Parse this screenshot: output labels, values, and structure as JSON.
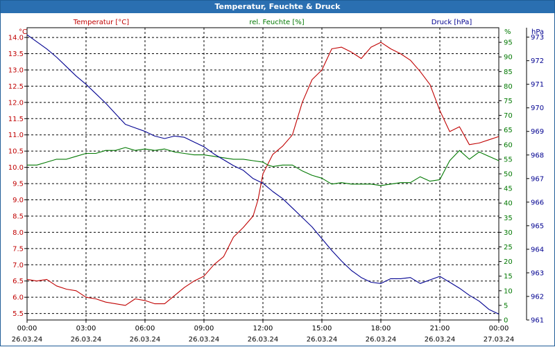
{
  "window": {
    "title": "Temperatur, Feuchte & Druck"
  },
  "chart_data": {
    "type": "line",
    "x_ticks": [
      {
        "time": "00:00",
        "date": "26.03.24"
      },
      {
        "time": "03:00",
        "date": "26.03.24"
      },
      {
        "time": "06:00",
        "date": "26.03.24"
      },
      {
        "time": "09:00",
        "date": "26.03.24"
      },
      {
        "time": "12:00",
        "date": "26.03.24"
      },
      {
        "time": "15:00",
        "date": "26.03.24"
      },
      {
        "time": "18:00",
        "date": "26.03.24"
      },
      {
        "time": "21:00",
        "date": "26.03.24"
      },
      {
        "time": "00:00",
        "date": "27.03.24"
      }
    ],
    "xlim": [
      "26.03.24 00:00",
      "27.03.24 00:00"
    ],
    "grid": true,
    "axes": {
      "temperature": {
        "label": "Temperatur [°C]",
        "unit": "°C",
        "side": "left",
        "ylim": [
          5.3,
          14.3
        ],
        "ticks": [
          "5.5",
          "6.0",
          "6.5",
          "7.0",
          "7.5",
          "8.0",
          "8.5",
          "9.0",
          "9.5",
          "10.0",
          "10.5",
          "11.0",
          "11.5",
          "12.0",
          "12.5",
          "13.0",
          "13.5",
          "14.0"
        ],
        "color": "#c00000"
      },
      "humidity": {
        "label": "rel. Feuchte [%]",
        "unit": "%",
        "side": "right",
        "ylim": [
          0,
          100
        ],
        "ticks": [
          "0",
          "5",
          "10",
          "15",
          "20",
          "25",
          "30",
          "35",
          "40",
          "45",
          "50",
          "55",
          "60",
          "65",
          "70",
          "75",
          "80",
          "85",
          "90",
          "95"
        ],
        "color": "#007800"
      },
      "pressure": {
        "label": "Druck [hPa]",
        "unit": "hPa",
        "side": "right-outer",
        "ylim": [
          961,
          973.4
        ],
        "ticks": [
          "961",
          "962",
          "963",
          "964",
          "965",
          "966",
          "967",
          "968",
          "969",
          "970",
          "971",
          "972",
          "973"
        ],
        "color": "#000090"
      }
    },
    "series": [
      {
        "axis": "temperature",
        "color": "#c00000",
        "points": [
          [
            "26.03.24 00:00",
            6.55
          ],
          [
            "26.03.24 00:30",
            6.5
          ],
          [
            "26.03.24 01:00",
            6.55
          ],
          [
            "26.03.24 01:30",
            6.35
          ],
          [
            "26.03.24 02:00",
            6.25
          ],
          [
            "26.03.24 02:30",
            6.2
          ],
          [
            "26.03.24 03:00",
            6.0
          ],
          [
            "26.03.24 03:30",
            5.95
          ],
          [
            "26.03.24 04:00",
            5.85
          ],
          [
            "26.03.24 04:30",
            5.8
          ],
          [
            "26.03.24 05:00",
            5.75
          ],
          [
            "26.03.24 05:30",
            5.95
          ],
          [
            "26.03.24 06:00",
            5.9
          ],
          [
            "26.03.24 06:30",
            5.8
          ],
          [
            "26.03.24 07:00",
            5.8
          ],
          [
            "26.03.24 07:30",
            6.05
          ],
          [
            "26.03.24 08:00",
            6.3
          ],
          [
            "26.03.24 08:30",
            6.5
          ],
          [
            "26.03.24 09:00",
            6.65
          ],
          [
            "26.03.24 09:30",
            7.0
          ],
          [
            "26.03.24 10:00",
            7.25
          ],
          [
            "26.03.24 10:30",
            7.85
          ],
          [
            "26.03.24 11:00",
            8.15
          ],
          [
            "26.03.24 11:30",
            8.5
          ],
          [
            "26.03.24 11:45",
            9.0
          ],
          [
            "26.03.24 12:00",
            9.8
          ],
          [
            "26.03.24 12:30",
            10.4
          ],
          [
            "26.03.24 13:00",
            10.65
          ],
          [
            "26.03.24 13:30",
            11.0
          ],
          [
            "26.03.24 14:00",
            12.0
          ],
          [
            "26.03.24 14:30",
            12.7
          ],
          [
            "26.03.24 15:00",
            13.0
          ],
          [
            "26.03.24 15:30",
            13.65
          ],
          [
            "26.03.24 16:00",
            13.7
          ],
          [
            "26.03.24 16:30",
            13.55
          ],
          [
            "26.03.24 17:00",
            13.35
          ],
          [
            "26.03.24 17:30",
            13.7
          ],
          [
            "26.03.24 18:00",
            13.85
          ],
          [
            "26.03.24 18:30",
            13.65
          ],
          [
            "26.03.24 19:00",
            13.5
          ],
          [
            "26.03.24 19:30",
            13.3
          ],
          [
            "26.03.24 20:00",
            12.95
          ],
          [
            "26.03.24 20:30",
            12.55
          ],
          [
            "26.03.24 21:00",
            11.75
          ],
          [
            "26.03.24 21:30",
            11.1
          ],
          [
            "26.03.24 22:00",
            11.25
          ],
          [
            "26.03.24 22:30",
            10.7
          ],
          [
            "26.03.24 23:00",
            10.75
          ],
          [
            "26.03.24 23:30",
            10.85
          ],
          [
            "27.03.24 00:00",
            10.95
          ]
        ]
      },
      {
        "axis": "humidity",
        "color": "#007800",
        "points": [
          [
            "26.03.24 00:00",
            53
          ],
          [
            "26.03.24 00:30",
            53
          ],
          [
            "26.03.24 01:00",
            54
          ],
          [
            "26.03.24 01:30",
            55
          ],
          [
            "26.03.24 02:00",
            55
          ],
          [
            "26.03.24 02:30",
            56
          ],
          [
            "26.03.24 03:00",
            57
          ],
          [
            "26.03.24 03:30",
            57
          ],
          [
            "26.03.24 04:00",
            58
          ],
          [
            "26.03.24 04:30",
            58
          ],
          [
            "26.03.24 05:00",
            59
          ],
          [
            "26.03.24 05:30",
            58
          ],
          [
            "26.03.24 06:00",
            58.5
          ],
          [
            "26.03.24 06:30",
            58
          ],
          [
            "26.03.24 07:00",
            58.5
          ],
          [
            "26.03.24 07:30",
            57.5
          ],
          [
            "26.03.24 08:00",
            57
          ],
          [
            "26.03.24 08:30",
            56.5
          ],
          [
            "26.03.24 09:00",
            56.5
          ],
          [
            "26.03.24 09:30",
            56
          ],
          [
            "26.03.24 10:00",
            55.5
          ],
          [
            "26.03.24 10:30",
            55
          ],
          [
            "26.03.24 11:00",
            55
          ],
          [
            "26.03.24 11:30",
            54.5
          ],
          [
            "26.03.24 12:00",
            54
          ],
          [
            "26.03.24 12:15",
            53
          ],
          [
            "26.03.24 12:30",
            52.5
          ],
          [
            "26.03.24 13:00",
            53
          ],
          [
            "26.03.24 13:30",
            53
          ],
          [
            "26.03.24 14:00",
            51
          ],
          [
            "26.03.24 14:30",
            49.5
          ],
          [
            "26.03.24 15:00",
            48.5
          ],
          [
            "26.03.24 15:30",
            46.5
          ],
          [
            "26.03.24 16:00",
            47
          ],
          [
            "26.03.24 16:30",
            46.5
          ],
          [
            "26.03.24 17:00",
            46.5
          ],
          [
            "26.03.24 17:30",
            46.5
          ],
          [
            "26.03.24 18:00",
            46
          ],
          [
            "26.03.24 18:30",
            46.5
          ],
          [
            "26.03.24 19:00",
            47
          ],
          [
            "26.03.24 19:30",
            47
          ],
          [
            "26.03.24 20:00",
            49
          ],
          [
            "26.03.24 20:30",
            47.5
          ],
          [
            "26.03.24 21:00",
            48
          ],
          [
            "26.03.24 21:30",
            54.5
          ],
          [
            "26.03.24 22:00",
            58
          ],
          [
            "26.03.24 22:30",
            55
          ],
          [
            "26.03.24 23:00",
            57.5
          ],
          [
            "26.03.24 23:30",
            56
          ],
          [
            "27.03.24 00:00",
            54.5
          ]
        ]
      },
      {
        "axis": "pressure",
        "color": "#000090",
        "points": [
          [
            "26.03.24 00:00",
            973.1
          ],
          [
            "26.03.24 00:30",
            972.8
          ],
          [
            "26.03.24 01:00",
            972.5
          ],
          [
            "26.03.24 01:30",
            972.15
          ],
          [
            "26.03.24 02:00",
            971.75
          ],
          [
            "26.03.24 02:30",
            971.35
          ],
          [
            "26.03.24 03:00",
            971.0
          ],
          [
            "26.03.24 03:30",
            970.6
          ],
          [
            "26.03.24 04:00",
            970.2
          ],
          [
            "26.03.24 04:30",
            969.75
          ],
          [
            "26.03.24 05:00",
            969.3
          ],
          [
            "26.03.24 05:30",
            969.15
          ],
          [
            "26.03.24 06:00",
            969.0
          ],
          [
            "26.03.24 06:30",
            968.8
          ],
          [
            "26.03.24 07:00",
            968.7
          ],
          [
            "26.03.24 07:30",
            968.8
          ],
          [
            "26.03.24 08:00",
            968.75
          ],
          [
            "26.03.24 08:30",
            968.55
          ],
          [
            "26.03.24 09:00",
            968.35
          ],
          [
            "26.03.24 09:30",
            968.05
          ],
          [
            "26.03.24 10:00",
            967.8
          ],
          [
            "26.03.24 10:30",
            967.55
          ],
          [
            "26.03.24 11:00",
            967.35
          ],
          [
            "26.03.24 11:30",
            967.0
          ],
          [
            "26.03.24 12:00",
            966.8
          ],
          [
            "26.03.24 12:30",
            966.45
          ],
          [
            "26.03.24 13:00",
            966.15
          ],
          [
            "26.03.24 13:30",
            965.75
          ],
          [
            "26.03.24 14:00",
            965.35
          ],
          [
            "26.03.24 14:30",
            964.95
          ],
          [
            "26.03.24 15:00",
            964.45
          ],
          [
            "26.03.24 15:30",
            963.95
          ],
          [
            "26.03.24 16:00",
            963.5
          ],
          [
            "26.03.24 16:30",
            963.1
          ],
          [
            "26.03.24 17:00",
            962.8
          ],
          [
            "26.03.24 17:30",
            962.6
          ],
          [
            "26.03.24 18:00",
            962.55
          ],
          [
            "26.03.24 18:30",
            962.75
          ],
          [
            "26.03.24 19:00",
            962.75
          ],
          [
            "26.03.24 19:30",
            962.8
          ],
          [
            "26.03.24 20:00",
            962.55
          ],
          [
            "26.03.24 20:30",
            962.7
          ],
          [
            "26.03.24 21:00",
            962.85
          ],
          [
            "26.03.24 21:30",
            962.6
          ],
          [
            "26.03.24 22:00",
            962.35
          ],
          [
            "26.03.24 22:30",
            962.05
          ],
          [
            "26.03.24 23:00",
            961.8
          ],
          [
            "26.03.24 23:30",
            961.45
          ],
          [
            "27.03.24 00:00",
            961.25
          ]
        ]
      }
    ]
  }
}
